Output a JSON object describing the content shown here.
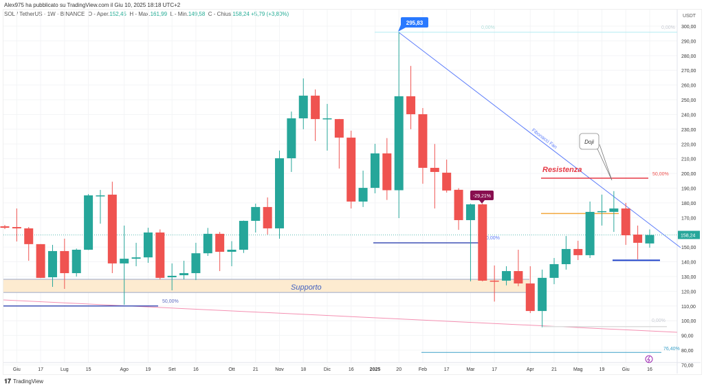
{
  "header": {
    "published": "Alex975 ha pubblicato su TradingView.com il Giu 10, 2025 18:18 UTC+2",
    "symbol": "SOL / TetherUS · 1W · BINANCE",
    "o_label": "O - Aper.",
    "o_value": "152,45",
    "h_label": "H - Max.",
    "h_value": "161,99",
    "l_label": "L - Min.",
    "l_value": "149,58",
    "c_label": "C - Chius.",
    "c_value": "158,24",
    "change": "+5,79 (+3,80%)"
  },
  "price_axis": {
    "unit": "USDT",
    "ticks": [
      "300,00",
      "290,00",
      "280,00",
      "270,00",
      "260,00",
      "250,00",
      "240,00",
      "230,00",
      "220,00",
      "210,00",
      "200,00",
      "190,00",
      "180,00",
      "170,00",
      "150,00",
      "140,00",
      "130,00",
      "120,00",
      "110,00",
      "100,00",
      "90,00",
      "80,00",
      "70,00"
    ],
    "tick_values": [
      300,
      290,
      280,
      270,
      260,
      250,
      240,
      230,
      220,
      210,
      200,
      190,
      180,
      170,
      150,
      140,
      130,
      120,
      110,
      100,
      90,
      80,
      70
    ],
    "current_price": "158,24",
    "current_value": 158.24
  },
  "time_axis": {
    "labels": [
      "Giu",
      "17",
      "Lug",
      "15",
      "Ago",
      "19",
      "Set",
      "16",
      "Ott",
      "21",
      "Nov",
      "18",
      "Dic",
      "16",
      "2025",
      "20",
      "Feb",
      "17",
      "Mar",
      "17",
      "Apr",
      "21",
      "Mag",
      "19",
      "Giu",
      "16"
    ],
    "label_week_index": [
      1,
      3,
      5,
      7,
      10,
      12,
      14,
      16,
      19,
      21,
      23,
      25,
      27,
      29,
      31,
      33,
      35,
      37,
      39,
      41,
      44,
      46,
      48,
      50,
      52,
      54
    ]
  },
  "candles": [
    [
      164.1,
      165,
      162.2,
      163.1
    ],
    [
      163.6,
      176.2,
      153.8,
      162.7
    ],
    [
      162.7,
      163.6,
      140.7,
      152.0
    ],
    [
      152.0,
      152.0,
      129.0,
      129.1
    ],
    [
      129.5,
      151.5,
      123.0,
      147.3
    ],
    [
      147.3,
      155.7,
      121.6,
      132.3
    ],
    [
      132.3,
      149.0,
      130.0,
      148.2
    ],
    [
      148.2,
      186.0,
      148.0,
      185.1
    ],
    [
      184.6,
      188.8,
      165.9,
      185.1
    ],
    [
      185.6,
      194.4,
      132.3,
      138.9
    ],
    [
      138.9,
      164.6,
      110.8,
      142.1
    ],
    [
      142.1,
      152.9,
      137.0,
      143.0
    ],
    [
      143.0,
      163.1,
      139.3,
      159.9
    ],
    [
      159.9,
      162.0,
      128.0,
      129.1
    ],
    [
      129.5,
      138.9,
      120.6,
      130.5
    ],
    [
      130.9,
      140.7,
      128.0,
      132.3
    ],
    [
      132.3,
      152.9,
      127.6,
      145.8
    ],
    [
      145.8,
      163.0,
      144.0,
      159.0
    ],
    [
      159.0,
      160.3,
      133.7,
      146.8
    ],
    [
      146.8,
      154.0,
      137.0,
      148.2
    ],
    [
      148.2,
      168.0,
      146.0,
      167.8
    ],
    [
      167.8,
      179.5,
      159.9,
      177.2
    ],
    [
      177.2,
      183.7,
      158.5,
      162.7
    ],
    [
      162.7,
      215.5,
      155.7,
      210.3
    ],
    [
      210.3,
      242.0,
      201.0,
      237.4
    ],
    [
      237.4,
      264.5,
      230.0,
      252.8
    ],
    [
      252.8,
      257.0,
      222.0,
      236.9
    ],
    [
      237.0,
      247.2,
      215.5,
      237.4
    ],
    [
      236.9,
      237.0,
      203.3,
      224.3
    ],
    [
      224.3,
      229.0,
      176.2,
      180.9
    ],
    [
      180.9,
      201.9,
      177.2,
      190.2
    ],
    [
      190.2,
      220.1,
      186.5,
      213.6
    ],
    [
      213.6,
      224.0,
      182.0,
      188.6
    ],
    [
      188.6,
      295.83,
      169.7,
      252.4
    ],
    [
      252.4,
      273.0,
      230.0,
      240.2
    ],
    [
      240.2,
      244.4,
      193.0,
      203.8
    ],
    [
      203.8,
      220.0,
      176.2,
      201.0
    ],
    [
      200.5,
      209.4,
      187.0,
      188.4
    ],
    [
      188.9,
      190.0,
      161.7,
      168.3
    ],
    [
      168.3,
      179.5,
      126.7,
      179.0
    ],
    [
      179.0,
      179.5,
      126.7,
      127.2
    ],
    [
      127.2,
      137.5,
      113.0,
      126.7
    ],
    [
      127.2,
      137.0,
      124.0,
      133.7
    ],
    [
      133.7,
      148.2,
      123.4,
      125.3
    ],
    [
      125.3,
      137.0,
      105.2,
      106.6
    ],
    [
      106.6,
      134.7,
      95.5,
      129.1
    ],
    [
      129.1,
      142.6,
      124.8,
      138.4
    ],
    [
      138.4,
      157.5,
      134.7,
      148.7
    ],
    [
      148.7,
      154.3,
      141.2,
      144.5
    ],
    [
      144.5,
      180.9,
      142.6,
      173.9
    ],
    [
      173.9,
      185.6,
      164.6,
      174.4
    ],
    [
      173.9,
      188.0,
      160.3,
      176.2
    ],
    [
      176.2,
      180.0,
      151.5,
      158.0
    ],
    [
      158.5,
      164.6,
      141.7,
      152.9
    ],
    [
      152.45,
      161.99,
      149.58,
      158.24
    ]
  ],
  "drawings": {
    "support_label": "Supporto",
    "support_top": 128.1,
    "support_bottom": 119.2,
    "resistance_label": "Resistenza",
    "resistance_price": 196.8,
    "resistance_pct": "50,00%",
    "orange_level": 172.8,
    "blue_level_right": 141.0,
    "blue_level_mid": 152.9,
    "mid_pct": "0,00%",
    "left_level": 110.0,
    "left_pct": "50,00%",
    "fib_top": 295.83,
    "fib_top_pct_a": "0,00%",
    "fib_top_pct_b": "0,00%",
    "fib_low": 96.0,
    "fib_low_pct": "0,00%",
    "fib_bottom": 78.5,
    "fib_bottom_pct": "76,40%",
    "fan_label": "Fibonacci Fan",
    "high_callout": "295,83",
    "drop_callout": "-29,21%",
    "doji_note": "Doji"
  },
  "footer": {
    "brand": "TradingView"
  },
  "colors": {
    "up": "#26a69a",
    "down": "#ef5350",
    "support_fill": "#fdebd0",
    "support_line": "#9aa7c7",
    "resistance": "#e53945",
    "orange": "#f2a73b",
    "blue": "#2962ff",
    "navy": "#3f51b5",
    "pink": "#f48fb1",
    "callout_blue": "#2979ff",
    "callout_red": "#880e4f"
  }
}
